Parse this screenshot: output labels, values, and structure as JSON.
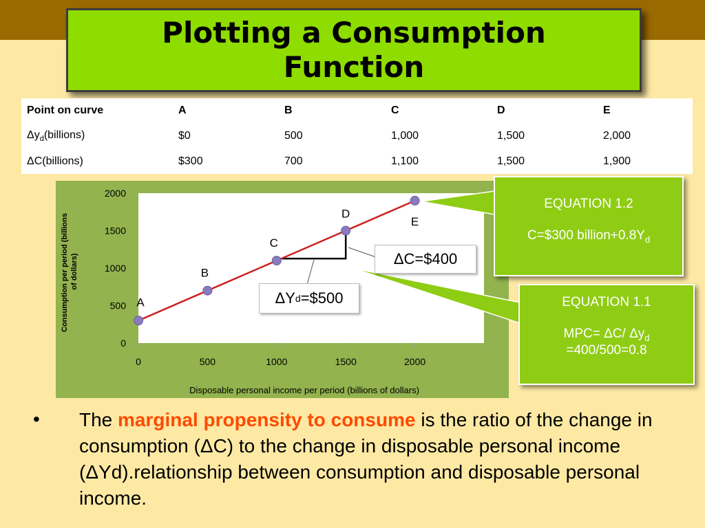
{
  "slide": {
    "title": "Plotting a Consumption Function"
  },
  "table": {
    "rows": [
      [
        "Point on curve",
        "A",
        "B",
        "C",
        "D",
        "E"
      ],
      [
        "Δy",
        "$0",
        "500",
        "1,000",
        "1,500",
        "2,000"
      ],
      [
        "ΔC(billions)",
        "$300",
        "700",
        "1,100",
        "1,500",
        "1,900"
      ]
    ],
    "row2_sub": "d",
    "row2_suffix": "(billions)"
  },
  "chart_data": {
    "type": "line",
    "xlabel": "Disposable personal income per period (billions of dollars)",
    "ylabel": "Consumption per period (billions of dollars)",
    "xlim": [
      0,
      2500
    ],
    "ylim": [
      0,
      2000
    ],
    "x_ticks": [
      0,
      500,
      1000,
      1500,
      2000
    ],
    "y_ticks": [
      0,
      500,
      1000,
      1500,
      2000
    ],
    "x_tick_labels": [
      "0",
      "500",
      "1000",
      "1500",
      "2000"
    ],
    "y_tick_labels": [
      "0",
      "500",
      "1000",
      "1500",
      "2000"
    ],
    "grid": false,
    "colors": {
      "line": "#cc1f1f",
      "point": "#8a7bbd",
      "plot_bg": "#ffffff",
      "panel_bg": "#92b34e"
    },
    "series": [
      {
        "x": [
          0,
          500,
          1000,
          1500,
          2000
        ],
        "y": [
          300,
          700,
          1100,
          1500,
          1900
        ],
        "point_labels": [
          "A",
          "B",
          "C",
          "D",
          "E"
        ]
      }
    ]
  },
  "annotations": {
    "delta_c": "ΔC=$400",
    "delta_y_prefix": "ΔY",
    "delta_y_sub": "d",
    "delta_y_suffix": "=$500"
  },
  "equations": {
    "eq12_title": "EQUATION 1.2",
    "eq12_formula": "C=$300 billion+0.8Y",
    "eq12_sub": "d",
    "eq11_title": "EQUATION 1.1",
    "eq11_formula": "MPC= ΔC/ Δy",
    "eq11_sub": "d",
    "eq11_result": "=400/500=0.8"
  },
  "bullet": {
    "marker": "•",
    "lead": "The ",
    "highlight": "marginal propensity to consume",
    "rest": " is the ratio of the change in consumption (ΔC) to the change in disposable personal income (ΔYd).relationship between consumption and disposable personal income."
  }
}
